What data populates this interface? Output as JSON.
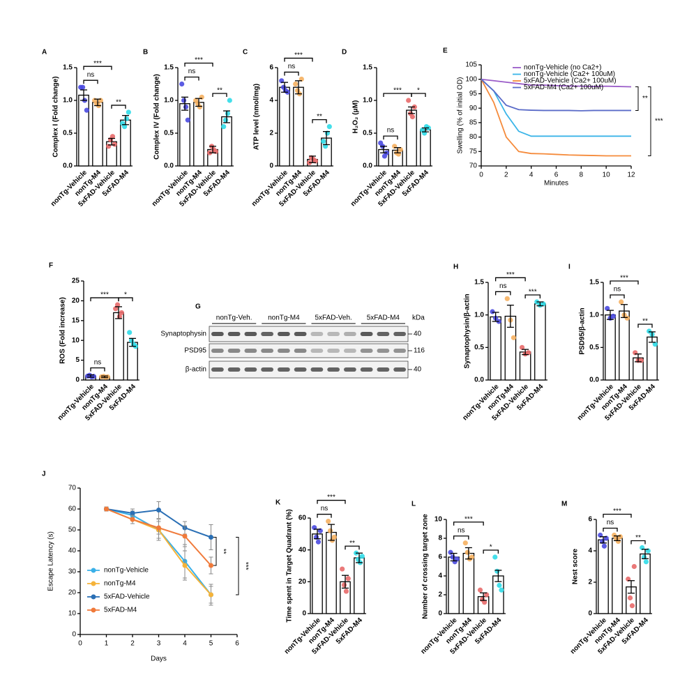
{
  "chart_data": [
    {
      "panel": "A",
      "type": "bar",
      "ylabel": "Complex I (Fold change)",
      "categories": [
        "nonTg-Vehicle",
        "nonTg-M4",
        "5xFAD-Vehicle",
        "5xFAD-M4"
      ],
      "values": [
        1.08,
        0.97,
        0.37,
        0.7
      ],
      "errors": [
        0.08,
        0.05,
        0.05,
        0.07
      ],
      "points": [
        [
          1.2,
          1.2,
          1.0,
          0.85
        ],
        [
          1.0,
          0.95,
          0.92,
          1.0
        ],
        [
          0.3,
          0.4,
          0.45,
          0.33
        ],
        [
          0.65,
          0.6,
          0.72,
          0.82
        ]
      ],
      "colors": [
        "#4a4ae0",
        "#f5b060",
        "#e86a6a",
        "#30dce8"
      ],
      "ylim": [
        0,
        1.5
      ],
      "yticks": [
        {
          "value": 0,
          "label": "0.0"
        },
        0.5,
        {
          "value": 1,
          "label": "1.0"
        },
        1.5
      ],
      "annotations": [
        {
          "from": 0,
          "to": 1,
          "label": "ns"
        },
        {
          "from": 2,
          "to": 3,
          "label": "**"
        },
        {
          "from": 0,
          "to": 2,
          "label": "***"
        }
      ]
    },
    {
      "panel": "B",
      "type": "bar",
      "ylabel": "Complex IV (Fold change)",
      "categories": [
        "nonTg-Vehicle",
        "nonTg-M4",
        "5xFAD-Vehicle",
        "5xFAD-M4"
      ],
      "values": [
        0.95,
        0.97,
        0.25,
        0.75
      ],
      "errors": [
        0.1,
        0.06,
        0.05,
        0.09
      ],
      "points": [
        [
          1.25,
          1.0,
          0.9,
          0.7
        ],
        [
          1.0,
          0.95,
          0.9,
          1.05
        ],
        [
          0.2,
          0.3,
          0.25,
          0.22
        ],
        [
          0.6,
          0.7,
          0.8,
          1.0
        ]
      ],
      "colors": [
        "#4a4ae0",
        "#f5b060",
        "#e86a6a",
        "#30dce8"
      ],
      "ylim": [
        0,
        1.5
      ],
      "yticks": [
        {
          "value": 0,
          "label": "0.0"
        },
        0.5,
        {
          "value": 1,
          "label": "1.0"
        },
        1.5
      ],
      "annotations": [
        {
          "from": 0,
          "to": 1,
          "label": "ns"
        },
        {
          "from": 2,
          "to": 3,
          "label": "**"
        },
        {
          "from": 0,
          "to": 2,
          "label": "***"
        }
      ]
    },
    {
      "panel": "C",
      "type": "bar",
      "ylabel": "ATP level (nmol/mg)",
      "categories": [
        "nonTg-Vehicle",
        "nonTg-M4",
        "5xFAD-Vehicle",
        "5xFAD-M4"
      ],
      "values": [
        4.8,
        4.8,
        0.4,
        1.7
      ],
      "errors": [
        0.3,
        0.4,
        0.2,
        0.4
      ],
      "points": [
        [
          5.2,
          4.8,
          4.6,
          4.5
        ],
        [
          5.0,
          4.6,
          4.4,
          5.3
        ],
        [
          0.2,
          0.5,
          0.4,
          0.3
        ],
        [
          1.5,
          1.2,
          2.0,
          2.4
        ]
      ],
      "colors": [
        "#4a4ae0",
        "#f5b060",
        "#e86a6a",
        "#30dce8"
      ],
      "ylim": [
        0,
        6
      ],
      "yticks": [
        0,
        2,
        4,
        6
      ],
      "annotations": [
        {
          "from": 0,
          "to": 1,
          "label": "ns"
        },
        {
          "from": 2,
          "to": 3,
          "label": "**"
        },
        {
          "from": 0,
          "to": 2,
          "label": "***"
        }
      ]
    },
    {
      "panel": "D",
      "type": "bar",
      "ylabel": "H₂O₂ (μM)",
      "categories": [
        "nonTg-Vehicle",
        "nonTg-M4",
        "5xFAD-Vehicle",
        "5xFAD-M4"
      ],
      "values": [
        0.25,
        0.24,
        0.85,
        0.55
      ],
      "errors": [
        0.05,
        0.04,
        0.05,
        0.03
      ],
      "points": [
        [
          0.35,
          0.3,
          0.15,
          0.2
        ],
        [
          0.3,
          0.2,
          0.18,
          0.25
        ],
        [
          1.0,
          0.8,
          0.75,
          0.9
        ],
        [
          0.55,
          0.5,
          0.6,
          0.58
        ]
      ],
      "colors": [
        "#4a4ae0",
        "#f5b060",
        "#e86a6a",
        "#30dce8"
      ],
      "ylim": [
        0,
        1.5
      ],
      "yticks": [
        {
          "value": 0,
          "label": "0.0"
        },
        0.5,
        {
          "value": 1,
          "label": "1.0"
        },
        1.5
      ],
      "annotations": [
        {
          "from": 0,
          "to": 1,
          "label": "ns"
        },
        {
          "from": 2,
          "to": 3,
          "label": "*"
        },
        {
          "from": 0,
          "to": 2,
          "label": "***"
        }
      ]
    },
    {
      "panel": "E",
      "type": "line",
      "xlabel": "Minutes",
      "ylabel": "Swelling (% of initial OD)",
      "x": [
        0,
        1,
        2,
        3,
        4,
        5,
        6,
        7,
        8,
        9,
        10,
        11,
        12
      ],
      "series": [
        {
          "name": "nonTg-Vehicle (no Ca2+)",
          "color": "#9a5cc8",
          "values": [
            100,
            99.5,
            99,
            98.5,
            98,
            98,
            97.8,
            97.7,
            97.6,
            97.5,
            97.6,
            97.5,
            97.4
          ]
        },
        {
          "name": "nonTg-Vehicle (Ca2+ 100uM)",
          "color": "#3ab5e8",
          "values": [
            100,
            96,
            88,
            82,
            80.3,
            80.3,
            80.3,
            80.3,
            80.3,
            80.3,
            80.3,
            80.3,
            80.3
          ]
        },
        {
          "name": "5xFAD-Vehicle (Ca2+ 100uM)",
          "color": "#f58a3a",
          "values": [
            100,
            92,
            80,
            75,
            74.3,
            74.2,
            74,
            73.8,
            73.7,
            73.6,
            73.5,
            73.5,
            73.5
          ]
        },
        {
          "name": "5xFAD-M4 (Ca2+ 100uM)",
          "color": "#5a6bc8",
          "values": [
            100,
            96,
            91,
            89.5,
            89.3,
            89.2,
            89.2,
            89.2,
            89.1,
            89.2,
            89.2,
            89.2,
            89.2
          ]
        }
      ],
      "xlim": [
        0,
        12
      ],
      "xticks": [
        0,
        2,
        4,
        6,
        8,
        10,
        12
      ],
      "ylim": [
        70,
        105
      ],
      "yticks": [
        70,
        75,
        80,
        85,
        90,
        95,
        100,
        105
      ],
      "legend": "upper right",
      "annotations": [
        {
          "from": 0,
          "to": 3,
          "label": "**"
        },
        {
          "from": 0,
          "to": 2,
          "label": "***"
        }
      ]
    },
    {
      "panel": "F",
      "type": "bar",
      "ylabel": "ROS (Fold increase)",
      "categories": [
        "nonTg-Vehicle",
        "nonTg-M4",
        "5xFAD-Vehicle",
        "5xFAD-M4"
      ],
      "values": [
        1.0,
        0.8,
        17,
        9.5
      ],
      "errors": [
        0.3,
        0.2,
        1.5,
        1
      ],
      "points": [
        [
          1,
          1.2,
          0.8,
          0.9
        ],
        [
          0.8,
          0.9,
          0.7,
          0.8
        ],
        [
          18,
          19,
          16,
          17
        ],
        [
          12,
          10,
          9,
          8.5
        ]
      ],
      "colors": [
        "#4a4ae0",
        "#f5b060",
        "#e86a6a",
        "#30dce8"
      ],
      "ylim": [
        0,
        25
      ],
      "yticks": [
        0,
        5,
        10,
        15,
        20,
        25
      ],
      "annotations": [
        {
          "from": 0,
          "to": 1,
          "label": "ns"
        },
        {
          "from": 2,
          "to": 3,
          "label": "*"
        },
        {
          "from": 0,
          "to": 2,
          "label": "***"
        }
      ]
    },
    {
      "panel": "G",
      "type": "blot",
      "lanes": [
        "nonTg-Veh.",
        "nonTg-M4",
        "5xFAD-Veh.",
        "5xFAD-M4"
      ],
      "unit": "kDa",
      "rows": [
        {
          "name": "Synaptophysin",
          "kda": 40
        },
        {
          "name": "PSD95",
          "kda": 116
        },
        {
          "name": "β-actin",
          "kda": 40
        }
      ]
    },
    {
      "panel": "H",
      "type": "bar",
      "ylabel": "Synaptophysin/β-actin",
      "categories": [
        "nonTg-Vehicle",
        "nonTg-M4",
        "5xFAD-Vehicle",
        "5xFAD-M4"
      ],
      "values": [
        0.97,
        0.98,
        0.43,
        1.17
      ],
      "errors": [
        0.07,
        0.17,
        0.04,
        0.03
      ],
      "points": [
        [
          1.05,
          0.95,
          0.9
        ],
        [
          1.25,
          0.92,
          0.65
        ],
        [
          0.5,
          0.4,
          0.42
        ],
        [
          1.2,
          1.15,
          1.17
        ]
      ],
      "colors": [
        "#4a4ae0",
        "#f5b060",
        "#e86a6a",
        "#30dce8"
      ],
      "ylim": [
        0,
        1.5
      ],
      "yticks": [
        {
          "value": 0,
          "label": "0.0"
        },
        0.5,
        {
          "value": 1,
          "label": "1.0"
        },
        1.5
      ],
      "annotations": [
        {
          "from": 0,
          "to": 1,
          "label": "ns"
        },
        {
          "from": 2,
          "to": 3,
          "label": "***"
        },
        {
          "from": 0,
          "to": 2,
          "label": "***"
        }
      ]
    },
    {
      "panel": "I",
      "type": "bar",
      "ylabel": "PSD95/β-actin",
      "categories": [
        "nonTg-Vehicle",
        "nonTg-M4",
        "5xFAD-Vehicle",
        "5xFAD-M4"
      ],
      "values": [
        1.0,
        1.06,
        0.34,
        0.66
      ],
      "errors": [
        0.07,
        0.1,
        0.06,
        0.08
      ],
      "points": [
        [
          1.1,
          0.95,
          0.98
        ],
        [
          1.2,
          1.0,
          0.95
        ],
        [
          0.42,
          0.3,
          0.3
        ],
        [
          0.75,
          0.7,
          0.55
        ]
      ],
      "colors": [
        "#4a4ae0",
        "#f5b060",
        "#e86a6a",
        "#30dce8"
      ],
      "ylim": [
        0,
        1.5
      ],
      "yticks": [
        {
          "value": 0,
          "label": "0.0"
        },
        0.5,
        {
          "value": 1,
          "label": "1.0"
        },
        1.5
      ],
      "annotations": [
        {
          "from": 0,
          "to": 1,
          "label": "ns"
        },
        {
          "from": 2,
          "to": 3,
          "label": "**"
        },
        {
          "from": 0,
          "to": 2,
          "label": "***"
        }
      ]
    },
    {
      "panel": "J",
      "type": "line",
      "markers": true,
      "xlabel": "Days",
      "ylabel": "Escape Latency (s)",
      "x": [
        1,
        2,
        3,
        4,
        5
      ],
      "series": [
        {
          "name": "nonTg-Vehicle",
          "color": "#3ab0e8",
          "values": [
            60,
            57,
            50,
            35,
            19
          ],
          "errors": [
            1,
            2,
            5,
            8,
            5
          ]
        },
        {
          "name": "nonTg-M4",
          "color": "#f5b33a",
          "values": [
            60,
            55,
            50,
            33,
            19
          ],
          "errors": [
            1,
            2,
            4,
            7,
            4
          ]
        },
        {
          "name": "5xFAD-Vehicle",
          "color": "#2a6fb5",
          "values": [
            60,
            58,
            59.5,
            51,
            46.5
          ],
          "errors": [
            1,
            2,
            4,
            3,
            6
          ]
        },
        {
          "name": "5xFAD-M4",
          "color": "#f07a3a",
          "values": [
            60,
            55,
            51,
            47,
            33
          ],
          "errors": [
            1,
            2,
            3,
            5,
            4
          ]
        }
      ],
      "xlim": [
        0,
        6
      ],
      "xticks": [
        0,
        1,
        2,
        3,
        4,
        5,
        6
      ],
      "ylim": [
        0,
        70
      ],
      "yticks": [
        0,
        10,
        20,
        30,
        40,
        50,
        60,
        70
      ],
      "legend": "lower left",
      "annotations": [
        {
          "from": 2,
          "to": 3,
          "label": "**"
        },
        {
          "from": 2,
          "to": 0,
          "label": "***"
        }
      ]
    },
    {
      "panel": "K",
      "type": "bar",
      "ylabel": "Time spent in Target Quadrant (%)",
      "categories": [
        "nonTg-Vehicle",
        "nonTg-M4",
        "5xFAD-Vehicle",
        "5xFAD-M4"
      ],
      "values": [
        50,
        51,
        20,
        35
      ],
      "errors": [
        3,
        5,
        4,
        3
      ],
      "points": [
        [
          54,
          48,
          45,
          52
        ],
        [
          58,
          52,
          46,
          48
        ],
        [
          28,
          18,
          14,
          22
        ],
        [
          38,
          34,
          32,
          36
        ]
      ],
      "colors": [
        "#4a4ae0",
        "#f5b060",
        "#e86a6a",
        "#30dce8"
      ],
      "ylim": [
        0,
        60
      ],
      "yticks": [
        0,
        20,
        40,
        60
      ],
      "annotations": [
        {
          "from": 0,
          "to": 1,
          "label": "ns"
        },
        {
          "from": 2,
          "to": 3,
          "label": "**"
        },
        {
          "from": 0,
          "to": 2,
          "label": "***"
        }
      ]
    },
    {
      "panel": "L",
      "type": "bar",
      "ylabel": "Number of crossing target zone",
      "categories": [
        "nonTg-Vehicle",
        "nonTg-M4",
        "5xFAD-Vehicle",
        "5xFAD-M4"
      ],
      "values": [
        6.0,
        6.4,
        1.8,
        4.0
      ],
      "errors": [
        0.4,
        0.6,
        0.4,
        0.6
      ],
      "points": [
        [
          6.5,
          6,
          5.5,
          5.8
        ],
        [
          7.5,
          6.5,
          5.8,
          6
        ],
        [
          2.5,
          1.5,
          1.2,
          2
        ],
        [
          6,
          4.5,
          3,
          2.5
        ]
      ],
      "colors": [
        "#4a4ae0",
        "#f5b060",
        "#e86a6a",
        "#30dce8"
      ],
      "ylim": [
        0,
        10
      ],
      "yticks": [
        0,
        2,
        4,
        6,
        8,
        10
      ],
      "annotations": [
        {
          "from": 0,
          "to": 1,
          "label": "ns"
        },
        {
          "from": 2,
          "to": 3,
          "label": "*"
        },
        {
          "from": 0,
          "to": 2,
          "label": "***"
        }
      ]
    },
    {
      "panel": "M",
      "type": "bar",
      "ylabel": "Nest score",
      "categories": [
        "nonTg-Vehicle",
        "nonTg-M4",
        "5xFAD-Vehicle",
        "5xFAD-M4"
      ],
      "values": [
        4.7,
        4.8,
        1.7,
        3.8
      ],
      "errors": [
        0.2,
        0.15,
        0.4,
        0.3
      ],
      "points": [
        [
          5,
          4.6,
          4.3,
          4.8
        ],
        [
          5,
          4.8,
          4.6,
          4.9
        ],
        [
          2.2,
          1,
          0.5,
          3
        ],
        [
          4.2,
          3.6,
          3.3,
          4
        ]
      ],
      "colors": [
        "#4a4ae0",
        "#f5b060",
        "#e86a6a",
        "#30dce8"
      ],
      "ylim": [
        0,
        6
      ],
      "yticks": [
        0,
        2,
        4,
        6
      ],
      "annotations": [
        {
          "from": 0,
          "to": 1,
          "label": "ns"
        },
        {
          "from": 2,
          "to": 3,
          "label": "**"
        },
        {
          "from": 0,
          "to": 2,
          "label": "***"
        }
      ]
    }
  ]
}
